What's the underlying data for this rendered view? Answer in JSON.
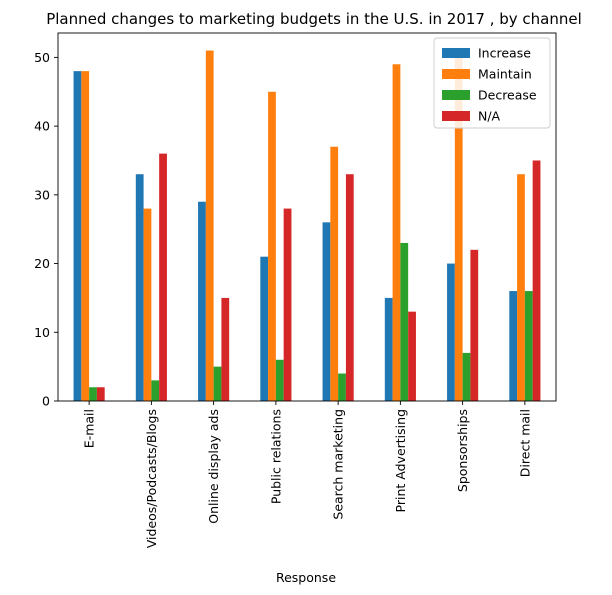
{
  "chart_data": {
    "type": "bar",
    "title": "Planned changes to marketing budgets in the U.S. in 2017 , by channel",
    "xlabel": "Response",
    "ylabel": "",
    "ylim": [
      0,
      53.55
    ],
    "yticks": [
      0,
      10,
      20,
      30,
      40,
      50
    ],
    "grid": false,
    "legend_position": "top-right",
    "categories": [
      "E-mail",
      "Videos/Podcasts/Blogs",
      "Online display ads",
      "Public relations",
      "Search marketing",
      "Print Advertising",
      "Sponsorships",
      "Direct mail"
    ],
    "series": [
      {
        "name": "Increase",
        "color": "#1f77b4",
        "values": [
          48,
          33,
          29,
          21,
          26,
          15,
          20,
          16
        ]
      },
      {
        "name": "Maintain",
        "color": "#ff7f0e",
        "values": [
          48,
          28,
          51,
          45,
          37,
          49,
          51,
          33
        ]
      },
      {
        "name": "Decrease",
        "color": "#2ca02c",
        "values": [
          2,
          3,
          5,
          6,
          4,
          23,
          7,
          16
        ]
      },
      {
        "name": "N/A",
        "color": "#d62728",
        "values": [
          2,
          36,
          15,
          28,
          33,
          13,
          22,
          35
        ]
      }
    ]
  }
}
